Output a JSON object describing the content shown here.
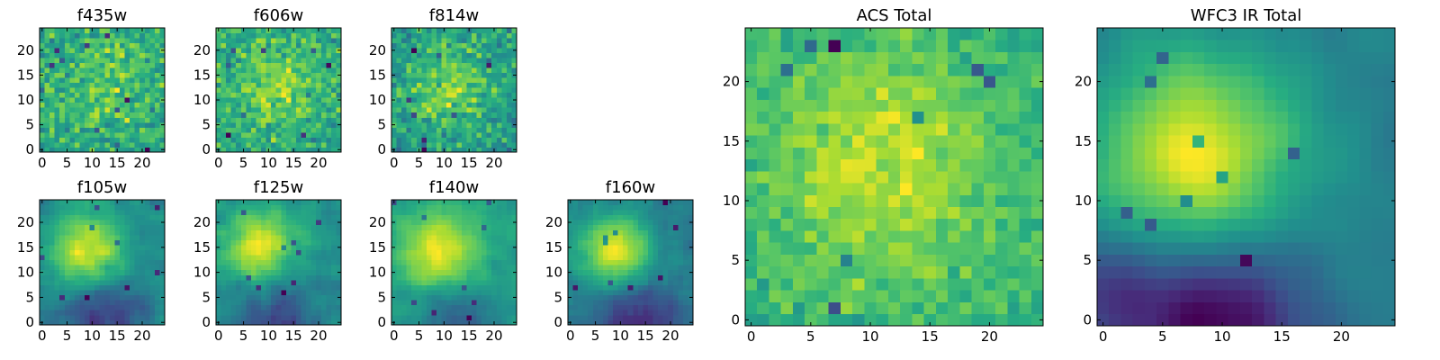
{
  "chart_data": [
    {
      "type": "heatmap",
      "title": "f435w",
      "grid_size": 25,
      "xlim": [
        0,
        24
      ],
      "ylim": [
        0,
        24
      ],
      "x_ticks": [
        0,
        5,
        10,
        15,
        20
      ],
      "y_ticks": [
        0,
        5,
        10,
        15,
        20
      ],
      "grid": false,
      "colormap": "viridis",
      "smoothness": 0,
      "noise_amplitude": 1.0,
      "seed": 11,
      "features": [
        {
          "x": 13,
          "y": 14,
          "sigma": 7,
          "amp": 0.25
        }
      ]
    },
    {
      "type": "heatmap",
      "title": "f606w",
      "grid_size": 25,
      "xlim": [
        0,
        24
      ],
      "ylim": [
        0,
        24
      ],
      "x_ticks": [
        0,
        5,
        10,
        15,
        20
      ],
      "y_ticks": [
        0,
        5,
        10,
        15,
        20
      ],
      "grid": false,
      "colormap": "viridis",
      "smoothness": 0,
      "noise_amplitude": 0.9,
      "seed": 23,
      "features": [
        {
          "x": 12,
          "y": 13,
          "sigma": 6,
          "amp": 0.35
        }
      ]
    },
    {
      "type": "heatmap",
      "title": "f814w",
      "grid_size": 25,
      "xlim": [
        0,
        24
      ],
      "ylim": [
        0,
        24
      ],
      "x_ticks": [
        0,
        5,
        10,
        15,
        20
      ],
      "y_ticks": [
        0,
        5,
        10,
        15,
        20
      ],
      "grid": false,
      "colormap": "viridis",
      "smoothness": 0,
      "noise_amplitude": 0.9,
      "seed": 37,
      "features": [
        {
          "x": 11,
          "y": 13,
          "sigma": 6,
          "amp": 0.4
        }
      ]
    },
    {
      "type": "heatmap",
      "title": "f105w",
      "grid_size": 25,
      "xlim": [
        0,
        24
      ],
      "ylim": [
        0,
        24
      ],
      "x_ticks": [
        0,
        5,
        10,
        15,
        20
      ],
      "y_ticks": [
        0,
        5,
        10,
        15,
        20
      ],
      "grid": false,
      "colormap": "viridis",
      "smoothness": 1,
      "noise_amplitude": 0.55,
      "seed": 41,
      "features": [
        {
          "x": 9,
          "y": 14,
          "sigma": 5,
          "amp": 0.9
        },
        {
          "x": 12,
          "y": 1,
          "sigma": 6,
          "amp": -0.6
        }
      ]
    },
    {
      "type": "heatmap",
      "title": "f125w",
      "grid_size": 25,
      "xlim": [
        0,
        24
      ],
      "ylim": [
        0,
        24
      ],
      "x_ticks": [
        0,
        5,
        10,
        15,
        20
      ],
      "y_ticks": [
        0,
        5,
        10,
        15,
        20
      ],
      "grid": false,
      "colormap": "viridis",
      "smoothness": 1,
      "noise_amplitude": 0.55,
      "seed": 53,
      "features": [
        {
          "x": 8,
          "y": 15,
          "sigma": 5,
          "amp": 0.9
        },
        {
          "x": 12,
          "y": 1,
          "sigma": 6,
          "amp": -0.5
        }
      ]
    },
    {
      "type": "heatmap",
      "title": "f140w",
      "grid_size": 25,
      "xlim": [
        0,
        24
      ],
      "ylim": [
        0,
        24
      ],
      "x_ticks": [
        0,
        5,
        10,
        15,
        20
      ],
      "y_ticks": [
        0,
        5,
        10,
        15,
        20
      ],
      "grid": false,
      "colormap": "viridis",
      "smoothness": 1,
      "noise_amplitude": 0.5,
      "seed": 67,
      "features": [
        {
          "x": 9,
          "y": 14,
          "sigma": 5.5,
          "amp": 1.0
        },
        {
          "x": 12,
          "y": 1,
          "sigma": 6,
          "amp": -0.55
        }
      ]
    },
    {
      "type": "heatmap",
      "title": "f160w",
      "grid_size": 25,
      "xlim": [
        0,
        24
      ],
      "ylim": [
        0,
        24
      ],
      "x_ticks": [
        0,
        5,
        10,
        15,
        20
      ],
      "y_ticks": [
        0,
        5,
        10,
        15,
        20
      ],
      "grid": false,
      "colormap": "viridis",
      "smoothness": 1,
      "noise_amplitude": 0.5,
      "seed": 79,
      "features": [
        {
          "x": 9,
          "y": 14,
          "sigma": 5,
          "amp": 1.05
        },
        {
          "x": 13,
          "y": 1,
          "sigma": 6,
          "amp": -0.55
        }
      ]
    },
    {
      "type": "heatmap",
      "title": "ACS Total",
      "grid_size": 25,
      "xlim": [
        0,
        24
      ],
      "ylim": [
        0,
        24
      ],
      "x_ticks": [
        0,
        5,
        10,
        15,
        20
      ],
      "y_ticks": [
        0,
        5,
        10,
        15,
        20
      ],
      "grid": false,
      "colormap": "viridis",
      "smoothness": 0,
      "noise_amplitude": 0.6,
      "seed": 97,
      "features": [
        {
          "x": 11,
          "y": 13,
          "sigma": 7,
          "amp": 0.45
        }
      ]
    },
    {
      "type": "heatmap",
      "title": "WFC3 IR Total",
      "grid_size": 25,
      "xlim": [
        0,
        24
      ],
      "ylim": [
        0,
        24
      ],
      "x_ticks": [
        0,
        5,
        10,
        15,
        20
      ],
      "y_ticks": [
        0,
        5,
        10,
        15,
        20
      ],
      "grid": false,
      "colormap": "viridis",
      "smoothness": 2,
      "noise_amplitude": 0.35,
      "seed": 113,
      "features": [
        {
          "x": 8,
          "y": 14,
          "sigma": 6,
          "amp": 1.2
        },
        {
          "x": 10,
          "y": 0,
          "sigma": 5,
          "amp": -1.0
        },
        {
          "x": 0,
          "y": 2,
          "sigma": 3,
          "amp": -0.6
        }
      ]
    }
  ]
}
